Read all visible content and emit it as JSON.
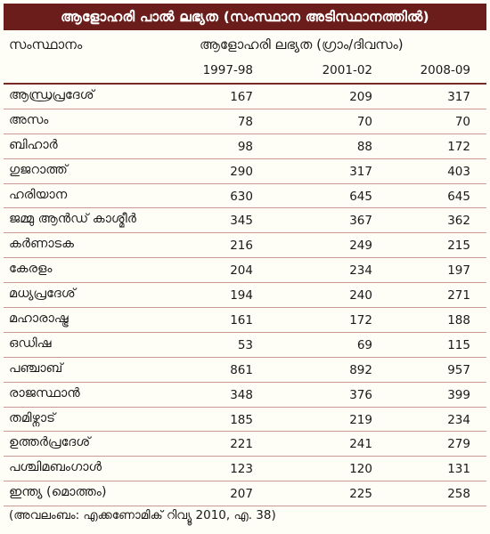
{
  "title": "ആളോഹരി പാൽ ലഭ്യത (സംസ്ഥാന അടിസ്ഥാനത്തിൽ)",
  "header": {
    "state_label": "സംസ്ഥാനം",
    "unit_label": "ആളോഹരി ലഭ്യത (ഗ്രാം/ദിവസം)",
    "years": [
      "1997-98",
      "2001-02",
      "2008-09"
    ]
  },
  "rows": [
    {
      "state": "ആന്ധ്രപ്രദേശ്",
      "values": [
        "167",
        "209",
        "317"
      ]
    },
    {
      "state": "അസം",
      "values": [
        "78",
        "70",
        "70"
      ]
    },
    {
      "state": "ബിഹാർ",
      "values": [
        "98",
        "88",
        "172"
      ]
    },
    {
      "state": "ഗുജറാത്ത്",
      "values": [
        "290",
        "317",
        "403"
      ]
    },
    {
      "state": "ഹരിയാന",
      "values": [
        "630",
        "645",
        "645"
      ]
    },
    {
      "state": "ജമ്മു ആൻഡ് കാശ്മീർ",
      "values": [
        "345",
        "367",
        "362"
      ]
    },
    {
      "state": "കർണാടക",
      "values": [
        "216",
        "249",
        "215"
      ]
    },
    {
      "state": "കേരളം",
      "values": [
        "204",
        "234",
        "197"
      ]
    },
    {
      "state": "മധ്യപ്രദേശ്",
      "values": [
        "194",
        "240",
        "271"
      ]
    },
    {
      "state": "മഹാരാഷ്ട്ര",
      "values": [
        "161",
        "172",
        "188"
      ]
    },
    {
      "state": "ഒഡിഷ",
      "values": [
        "53",
        "69",
        "115"
      ]
    },
    {
      "state": "പഞ്ചാബ്",
      "values": [
        "861",
        "892",
        "957"
      ]
    },
    {
      "state": "രാജസ്ഥാൻ",
      "values": [
        "348",
        "376",
        "399"
      ]
    },
    {
      "state": "തമിഴ്നാട്",
      "values": [
        "185",
        "219",
        "234"
      ]
    },
    {
      "state": "ഉത്തർപ്രദേശ്",
      "values": [
        "221",
        "241",
        "279"
      ]
    },
    {
      "state": "പശ്ചിമബംഗാൾ",
      "values": [
        "123",
        "120",
        "131"
      ]
    },
    {
      "state": "ഇന്ത്യ (മൊത്തം)",
      "values": [
        "207",
        "225",
        "258"
      ]
    }
  ],
  "source": "(അവലംബം: എക്കണോമിക് റിവ്യൂ 2010, എ. 38)"
}
